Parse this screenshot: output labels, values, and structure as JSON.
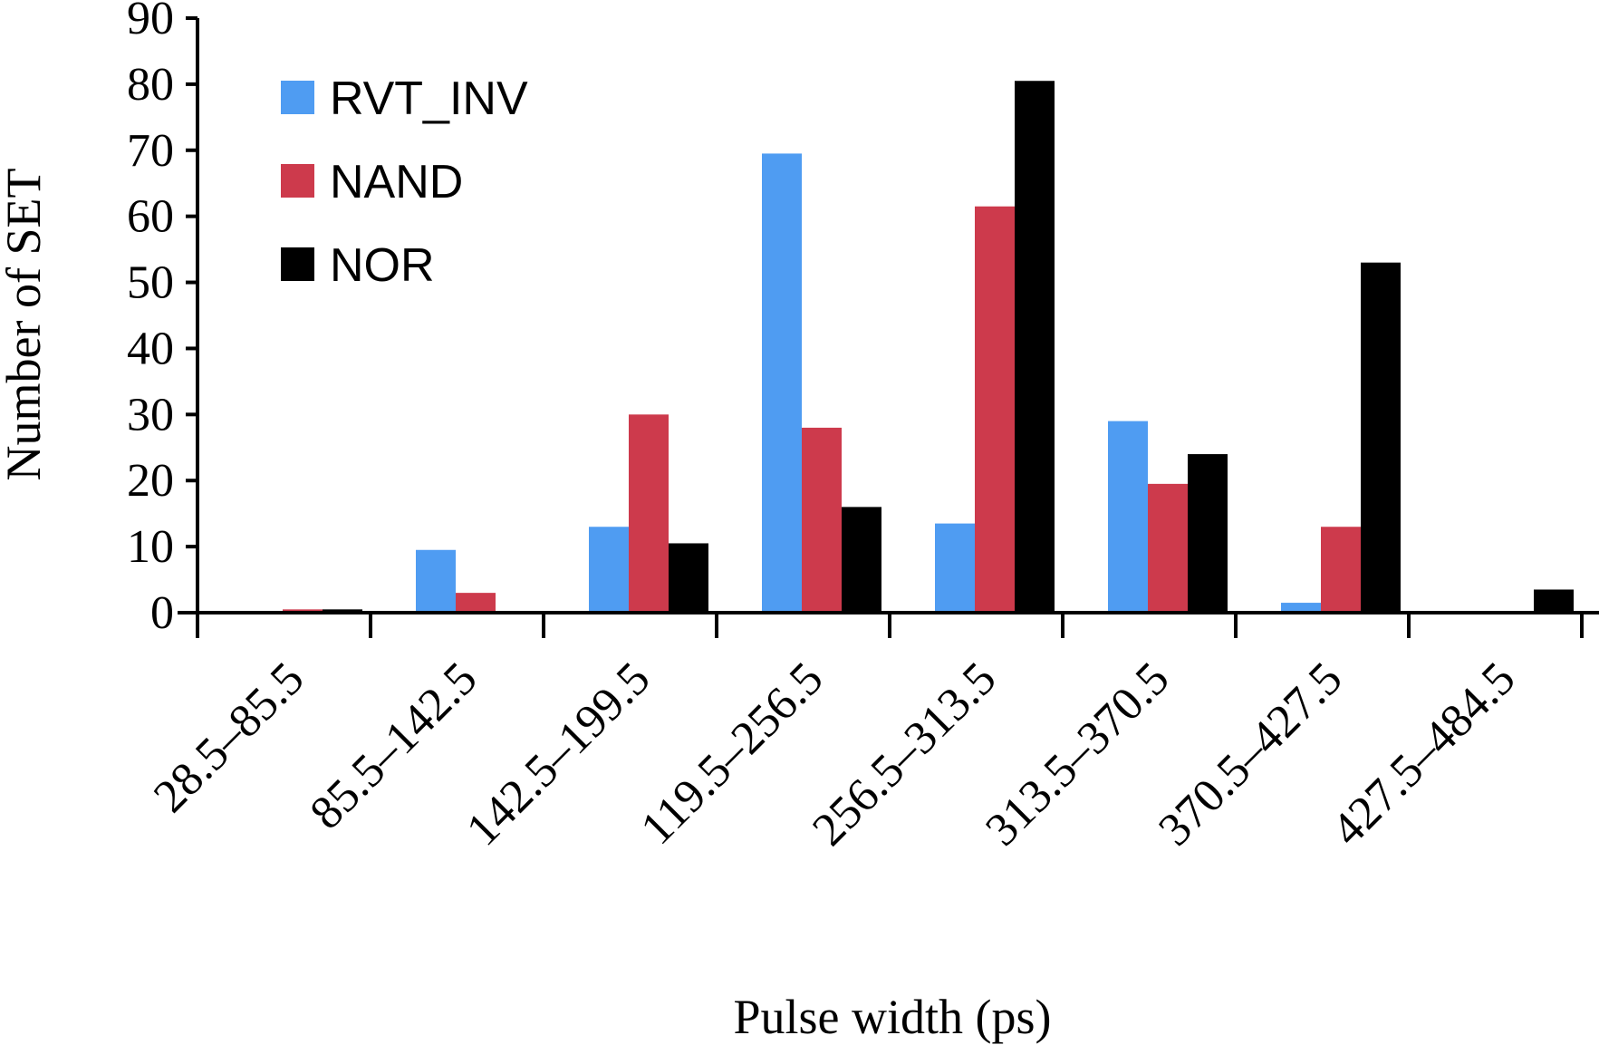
{
  "chart_data": {
    "type": "bar",
    "title": "",
    "xlabel": "Pulse width (ps)",
    "ylabel": "Number of SET",
    "ylim": [
      0,
      90
    ],
    "yticks": [
      0,
      10,
      20,
      30,
      40,
      50,
      60,
      70,
      80,
      90
    ],
    "grid": false,
    "legend_position": "top-left",
    "categories": [
      "28.5–85.5",
      "85.5–142.5",
      "142.5–199.5",
      "119.5–256.5",
      "256.5–313.5",
      "313.5–370.5",
      "370.5–427.5",
      "427.5–484.5"
    ],
    "series": [
      {
        "name": "RVT_INV",
        "color": "#4f9cf2",
        "values": [
          0,
          9.5,
          13,
          69.5,
          13.5,
          29,
          1.5,
          0
        ]
      },
      {
        "name": "NAND",
        "color": "#cd3a4c",
        "values": [
          0.5,
          3,
          30,
          28,
          61.5,
          19.5,
          13,
          0
        ]
      },
      {
        "name": "NOR",
        "color": "#000000",
        "values": [
          0.5,
          0,
          10.5,
          16,
          80.5,
          24,
          53,
          3.5
        ]
      }
    ]
  }
}
